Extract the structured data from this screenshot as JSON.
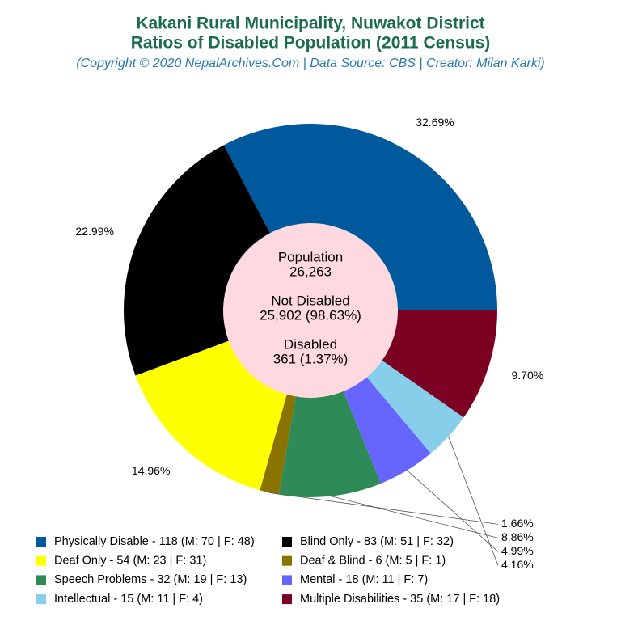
{
  "chart_data": {
    "type": "pie",
    "title": "Kakani Rural Municipality, Nuwakot District",
    "subtitle": "Ratios of Disabled Population (2011 Census)",
    "caption": "(Copyright © 2020 NepalArchives.Com | Data Source: CBS | Creator: Milan Karki)",
    "center_labels": [
      "Population",
      "26,263",
      "Not Disabled",
      "25,902 (98.63%)",
      "Disabled",
      "361 (1.37%)"
    ],
    "categories": [
      "Physically Disable - 118 (M: 70 | F: 48)",
      "Blind Only - 83 (M: 51 | F: 32)",
      "Deaf Only - 54 (M: 23 | F: 31)",
      "Deaf & Blind - 6 (M: 5 | F: 1)",
      "Speech Problems - 32 (M: 19 | F: 13)",
      "Mental - 18 (M: 11 | F: 7)",
      "Intellectual - 15 (M: 11 | F: 4)",
      "Multiple Disabilities - 35 (M: 17 | F: 18)"
    ],
    "values": [
      32.69,
      22.99,
      14.96,
      1.66,
      8.86,
      4.99,
      4.16,
      9.7
    ],
    "value_labels": [
      "32.69%",
      "22.99%",
      "14.96%",
      "1.66%",
      "8.86%",
      "4.99%",
      "4.16%",
      "9.70%"
    ],
    "colors": [
      "#00599c",
      "#000000",
      "#ffff00",
      "#8b7300",
      "#2e8b57",
      "#6666ff",
      "#87ceeb",
      "#7b0022"
    ]
  }
}
